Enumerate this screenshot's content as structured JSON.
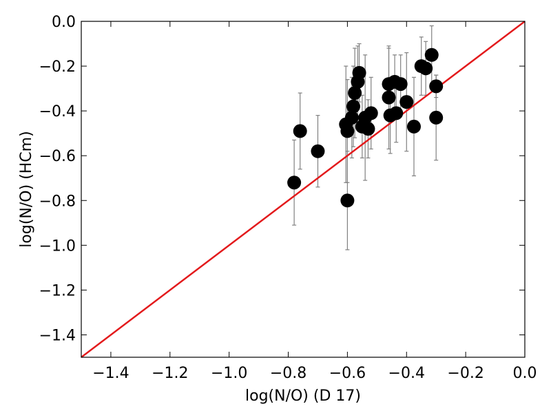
{
  "chart_data": {
    "type": "scatter",
    "title": "",
    "xlabel": "log(N/O) (D 17)",
    "ylabel": "log(N/O) (HCm)",
    "xlim": [
      -1.5,
      0.0
    ],
    "ylim": [
      -1.5,
      0.0
    ],
    "xticks": [
      -1.4,
      -1.2,
      -1.0,
      -0.8,
      -0.6,
      -0.4,
      -0.2,
      0.0
    ],
    "yticks": [
      -1.4,
      -1.2,
      -1.0,
      -0.8,
      -0.6,
      -0.4,
      -0.2,
      0.0
    ],
    "xtick_labels": [
      "−1.4",
      "−1.2",
      "−1.0",
      "−0.8",
      "−0.6",
      "−0.4",
      "−0.2",
      "0.0"
    ],
    "ytick_labels": [
      "−1.4",
      "−1.2",
      "−1.0",
      "−0.8",
      "−0.6",
      "−0.4",
      "−0.2",
      "0.0"
    ],
    "grid": false,
    "reference_line": {
      "x": [
        -1.5,
        0.0
      ],
      "y": [
        -1.5,
        0.0
      ],
      "color": "#e31a1c"
    },
    "marker_color": "#000000",
    "errorbar_color": "#808080",
    "points": [
      {
        "x": -0.78,
        "y": -0.72,
        "err": 0.19
      },
      {
        "x": -0.76,
        "y": -0.49,
        "err": 0.17
      },
      {
        "x": -0.7,
        "y": -0.58,
        "err": 0.16
      },
      {
        "x": -0.605,
        "y": -0.46,
        "err": 0.26
      },
      {
        "x": -0.6,
        "y": -0.49,
        "err": 0.23
      },
      {
        "x": -0.6,
        "y": -0.8,
        "err": 0.22
      },
      {
        "x": -0.585,
        "y": -0.43,
        "err": 0.18
      },
      {
        "x": -0.58,
        "y": -0.38,
        "err": 0.18
      },
      {
        "x": -0.575,
        "y": -0.32,
        "err": 0.2
      },
      {
        "x": -0.565,
        "y": -0.27,
        "err": 0.16
      },
      {
        "x": -0.56,
        "y": -0.23,
        "err": 0.13
      },
      {
        "x": -0.55,
        "y": -0.47,
        "err": 0.14
      },
      {
        "x": -0.54,
        "y": -0.43,
        "err": 0.28
      },
      {
        "x": -0.53,
        "y": -0.48,
        "err": 0.13
      },
      {
        "x": -0.52,
        "y": -0.41,
        "err": 0.16
      },
      {
        "x": -0.46,
        "y": -0.28,
        "err": 0.16
      },
      {
        "x": -0.46,
        "y": -0.34,
        "err": 0.23
      },
      {
        "x": -0.455,
        "y": -0.42,
        "err": 0.17
      },
      {
        "x": -0.44,
        "y": -0.27,
        "err": 0.12
      },
      {
        "x": -0.435,
        "y": -0.41,
        "err": 0.13
      },
      {
        "x": -0.42,
        "y": -0.28,
        "err": 0.13
      },
      {
        "x": -0.4,
        "y": -0.36,
        "err": 0.22
      },
      {
        "x": -0.375,
        "y": -0.47,
        "err": 0.22
      },
      {
        "x": -0.35,
        "y": -0.2,
        "err": 0.13
      },
      {
        "x": -0.335,
        "y": -0.21,
        "err": 0.12
      },
      {
        "x": -0.315,
        "y": -0.15,
        "err": 0.13
      },
      {
        "x": -0.3,
        "y": -0.29,
        "err": 0.05
      },
      {
        "x": -0.3,
        "y": -0.43,
        "err": 0.19
      }
    ]
  }
}
